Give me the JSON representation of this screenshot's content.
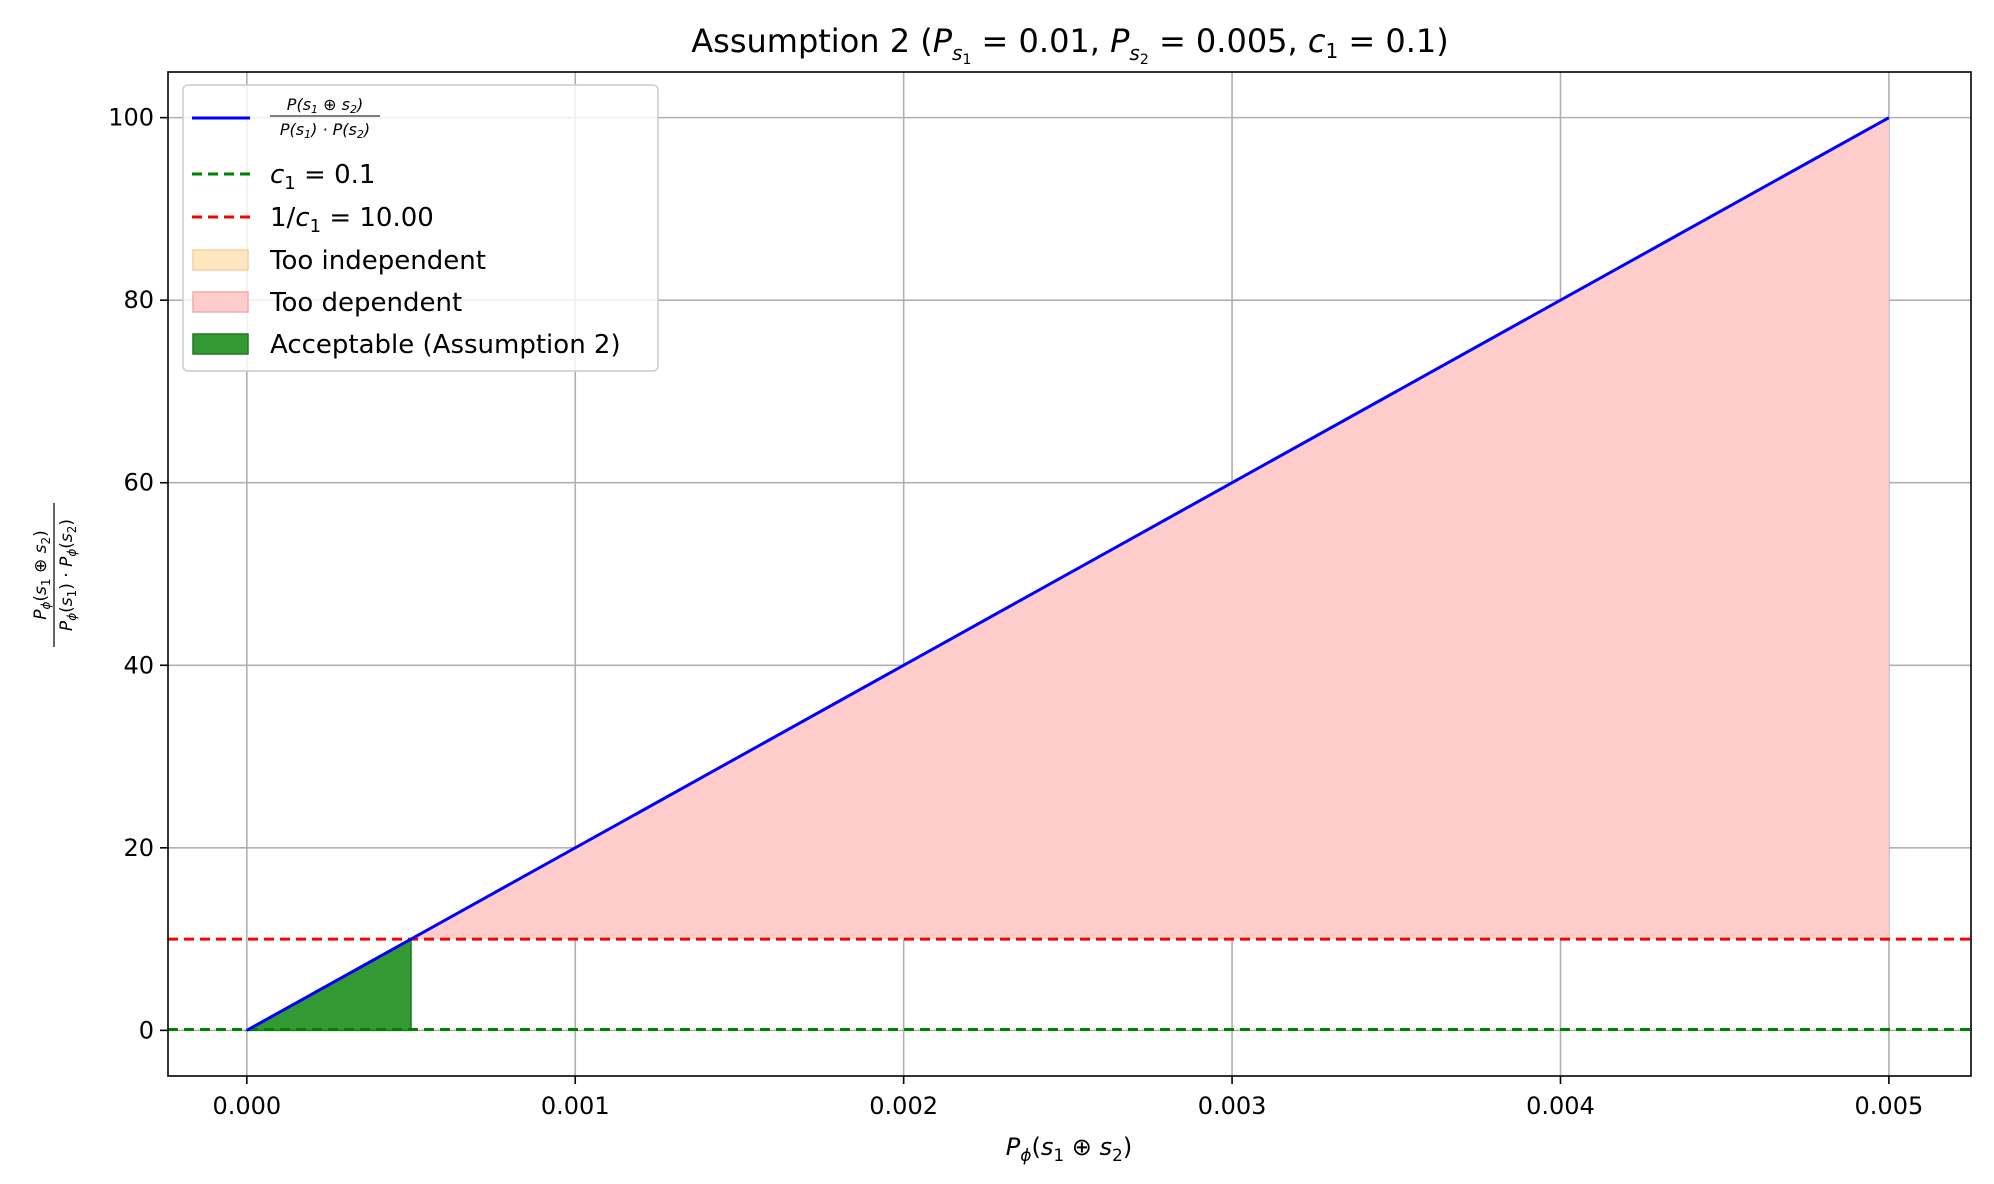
{
  "chart_data": {
    "type": "line",
    "title": "Assumption 2 (P_s1 = 0.01, P_s2 = 0.005, c1 = 0.1)",
    "xlabel": "Pϕ(s1 ⊕ s2)",
    "ylabel": "Pϕ(s1 ⊕ s2) / (Pϕ(s1) · Pϕ(s2))",
    "xlim": [
      -0.00024,
      0.00525
    ],
    "ylim": [
      -5,
      105
    ],
    "x_ticks": [
      "0.000",
      "0.001",
      "0.002",
      "0.003",
      "0.004",
      "0.005"
    ],
    "y_ticks": [
      "0",
      "20",
      "40",
      "60",
      "80",
      "100"
    ],
    "grid": true,
    "legend_position": "upper-left",
    "params": {
      "P_s1": 0.01,
      "P_s2": 0.005,
      "c1": 0.1,
      "inv_c1": 10.0
    },
    "series": [
      {
        "name": "P(s1 ⊕ s2) / (P(s1) · P(s2))",
        "style": "solid",
        "color": "#0000ff",
        "x": [
          0.0,
          0.005
        ],
        "y": [
          0,
          100
        ]
      },
      {
        "name": "c1 = 0.1",
        "style": "dashed",
        "color": "#008000",
        "y_const": 0.1
      },
      {
        "name": "1/c1 = 10.00",
        "style": "dashed",
        "color": "#ff0000",
        "y_const": 10
      }
    ],
    "regions": [
      {
        "name": "Too independent",
        "color": "#ffe6c2",
        "x_range": [
          0.0,
          5e-06
        ],
        "bounds": "between curve and c1 where ratio < c1"
      },
      {
        "name": "Too dependent",
        "color": "#ffcccc",
        "x_range": [
          0.0005,
          0.005
        ],
        "bounds": "between 1/c1 and curve where ratio > 1/c1"
      },
      {
        "name": "Acceptable (Assumption 2)",
        "color": "#339933",
        "x_range": [
          0.0,
          0.0005
        ],
        "bounds": "between 0 and curve where c1 ≤ ratio ≤ 1/c1"
      }
    ],
    "legend_entries": [
      "P(s1 ⊕ s2) / (P(s1) · P(s2))",
      "c1 = 0.1",
      "1/c1 = 10.00",
      "Too independent",
      "Too dependent",
      "Acceptable (Assumption 2)"
    ]
  },
  "colors": {
    "curve": "#0000ff",
    "c1_line": "#008000",
    "inv_c1_line": "#ff0000",
    "too_independent": "#ffe6c2",
    "too_dependent": "#ffcccc",
    "acceptable": "#339933",
    "grid": "#b0b0b0"
  }
}
